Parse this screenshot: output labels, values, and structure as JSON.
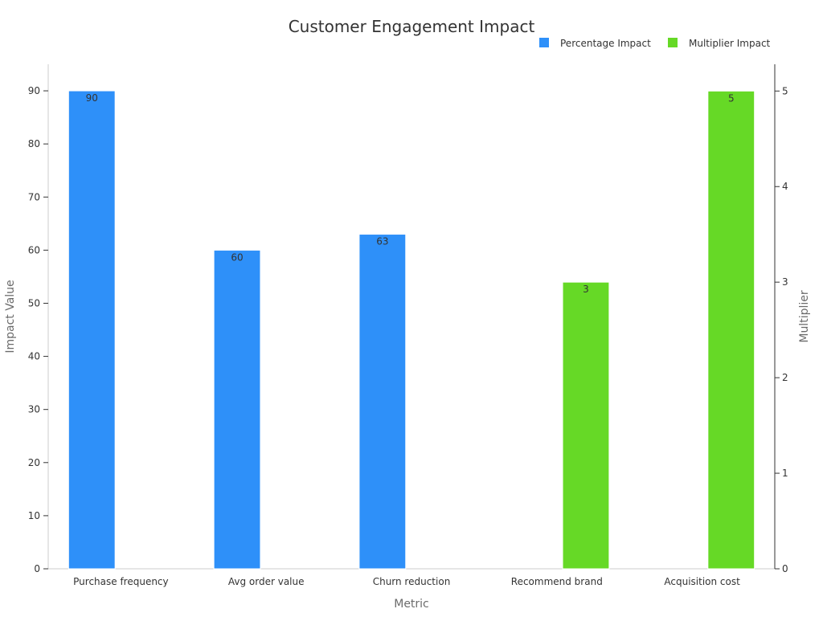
{
  "chart_data": {
    "type": "bar",
    "title": "Customer Engagement Impact",
    "categories": [
      "Purchase frequency",
      "Avg order value",
      "Churn reduction",
      "Recommend brand",
      "Acquisition cost"
    ],
    "series": [
      {
        "name": "Percentage Impact",
        "color": "#2E90F9",
        "axis": "left",
        "values": [
          90,
          60,
          63,
          null,
          null
        ]
      },
      {
        "name": "Multiplier Impact",
        "color": "#66D926",
        "axis": "right",
        "values": [
          null,
          null,
          null,
          3,
          5
        ]
      }
    ],
    "xlabel": "Metric",
    "ylabel": "Impact Value",
    "y2label": "Multiplier",
    "ylim": [
      0,
      95
    ],
    "yticks": [
      0,
      10,
      20,
      30,
      40,
      50,
      60,
      70,
      80,
      90
    ],
    "y2lim": [
      0,
      5.28
    ],
    "y2ticks": [
      0,
      1,
      2,
      3,
      4,
      5
    ],
    "legend_position": "top-right",
    "grid": false
  }
}
